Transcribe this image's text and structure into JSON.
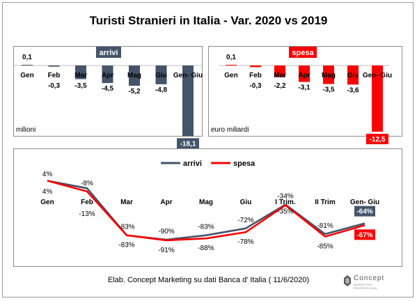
{
  "title": "Turisti Stranieri in Italia -  Var. 2020 vs 2019",
  "footer": "Elab. Concept Marketing su dati Banca d' Italia ( 11/6/2020)",
  "logo": {
    "name": "Concept",
    "tagline": "MARKETING PROFESSIONAL"
  },
  "colors": {
    "arrivi": "#44546a",
    "spesa": "#ff0000"
  },
  "chart_data": [
    {
      "type": "bar",
      "title": "arrivi",
      "unit_label": "milioni",
      "categories": [
        "Gen",
        "Feb",
        "Mar",
        "Apr",
        "Mag",
        "Giu",
        "Gen- Giu"
      ],
      "values": [
        0.1,
        -0.3,
        -3.5,
        -4.5,
        -5.2,
        -4.8,
        -18.1
      ],
      "value_labels": [
        "0,1",
        "-0,3",
        "-3,5",
        "-4,5",
        "-5,2",
        "-4,8",
        "-18,1"
      ],
      "color": "#44546a"
    },
    {
      "type": "bar",
      "title": "spesa",
      "unit_label": "euro miliardi",
      "categories": [
        "Gen",
        "Feb",
        "Mar",
        "Apr",
        "Mag",
        "Giu",
        "Gen- Giu"
      ],
      "values": [
        0.1,
        -0.3,
        -2.2,
        -3.1,
        -3.5,
        -3.6,
        -12.5
      ],
      "value_labels": [
        "0,1",
        "-0,3",
        "-2,2",
        "-3,1",
        "-3,5",
        "-3,6",
        "-12,5"
      ],
      "color": "#ff0000"
    },
    {
      "type": "line",
      "categories": [
        "Gen",
        "Feb",
        "Mar",
        "Apr",
        "Mag",
        "Giu",
        "I Trim.",
        "II Trim",
        "Gen- Giu"
      ],
      "legend": "top",
      "series": [
        {
          "name": "arrivi",
          "values": [
            4,
            -8,
            -83,
            -90,
            -83,
            -72,
            -34,
            -81,
            -64
          ],
          "labels": [
            "4%",
            "-8%",
            "-83%",
            "-90%",
            "-83%",
            "-72%",
            "-34%",
            "-81%",
            "-64%"
          ],
          "color": "#44546a"
        },
        {
          "name": "spesa",
          "values": [
            4,
            -13,
            -83,
            -91,
            -88,
            -78,
            -35,
            -85,
            -67
          ],
          "labels": [
            "4%",
            "-13%",
            "-83%",
            "-91%",
            "-88%",
            "-78%",
            "-35%",
            "-85%",
            "-67%"
          ],
          "color": "#ff0000"
        }
      ]
    }
  ]
}
